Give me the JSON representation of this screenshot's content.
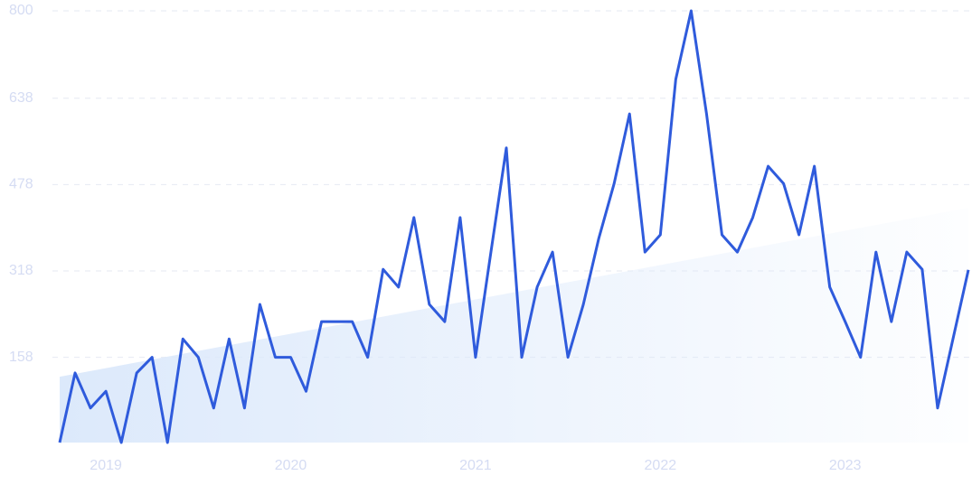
{
  "chart_data": {
    "type": "line",
    "categories": [
      null,
      null,
      null,
      "2019",
      null,
      null,
      null,
      null,
      null,
      null,
      null,
      null,
      null,
      null,
      null,
      "2020",
      null,
      null,
      null,
      null,
      null,
      null,
      null,
      null,
      null,
      null,
      null,
      "2021",
      null,
      null,
      null,
      null,
      null,
      null,
      null,
      null,
      null,
      null,
      null,
      "2022",
      null,
      null,
      null,
      null,
      null,
      null,
      null,
      null,
      null,
      null,
      null,
      "2023",
      null,
      null,
      null,
      null,
      null,
      null,
      null,
      null
    ],
    "values": [
      0,
      129,
      64,
      95,
      0,
      129,
      158,
      0,
      192,
      158,
      64,
      192,
      64,
      256,
      158,
      158,
      95,
      224,
      224,
      224,
      158,
      321,
      288,
      417,
      256,
      224,
      417,
      158,
      353,
      546,
      158,
      288,
      353,
      158,
      256,
      378,
      480,
      609,
      353,
      385,
      673,
      800,
      609,
      385,
      353,
      417,
      512,
      480,
      385,
      512,
      288,
      224,
      158,
      353,
      224,
      353,
      321,
      64,
      192,
      320
    ],
    "color": "#2f5bdc",
    "trend": [
      122,
      435
    ],
    "trend_color": "#dce9fb",
    "ylim": [
      0,
      800
    ],
    "yticks": [
      158,
      318,
      478,
      638,
      800
    ],
    "grid": true
  }
}
